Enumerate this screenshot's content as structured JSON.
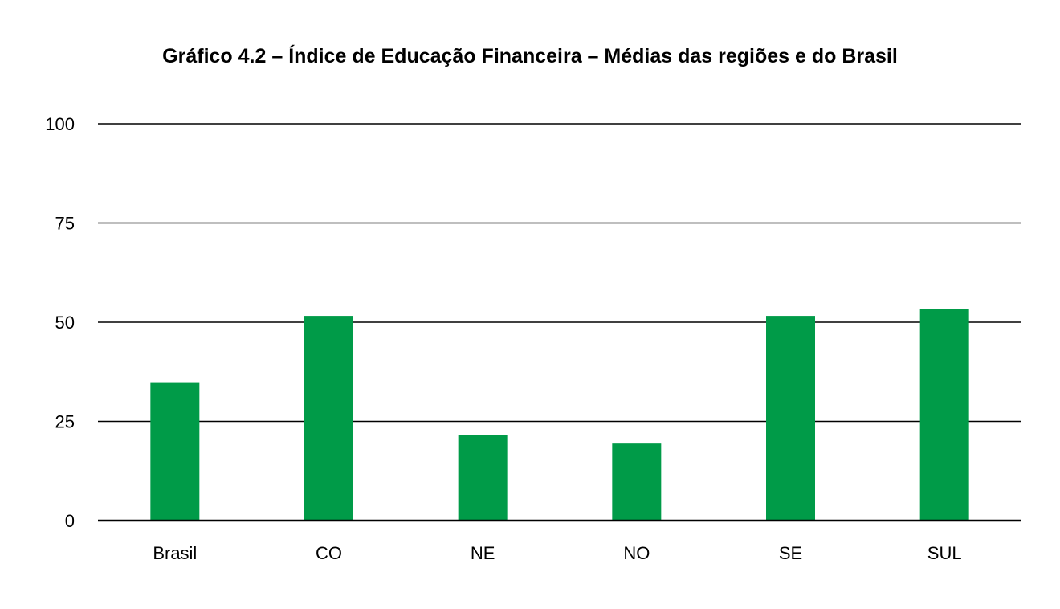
{
  "chart_data": {
    "type": "bar",
    "title": "Gráfico 4.2 – Índice de Educação Financeira – Médias das regiões e do Brasil",
    "xlabel": "",
    "ylabel": "",
    "categories": [
      "Brasil",
      "CO",
      "NE",
      "NO",
      "SE",
      "SUL"
    ],
    "values": [
      34.7,
      51.6,
      21.5,
      19.4,
      51.6,
      53.3
    ],
    "ylim": [
      0,
      100
    ],
    "yticks": [
      0,
      25,
      50,
      75,
      100
    ],
    "grid": true,
    "legend": "none",
    "bar_color": "#009B48",
    "grid_color": "#000000"
  }
}
